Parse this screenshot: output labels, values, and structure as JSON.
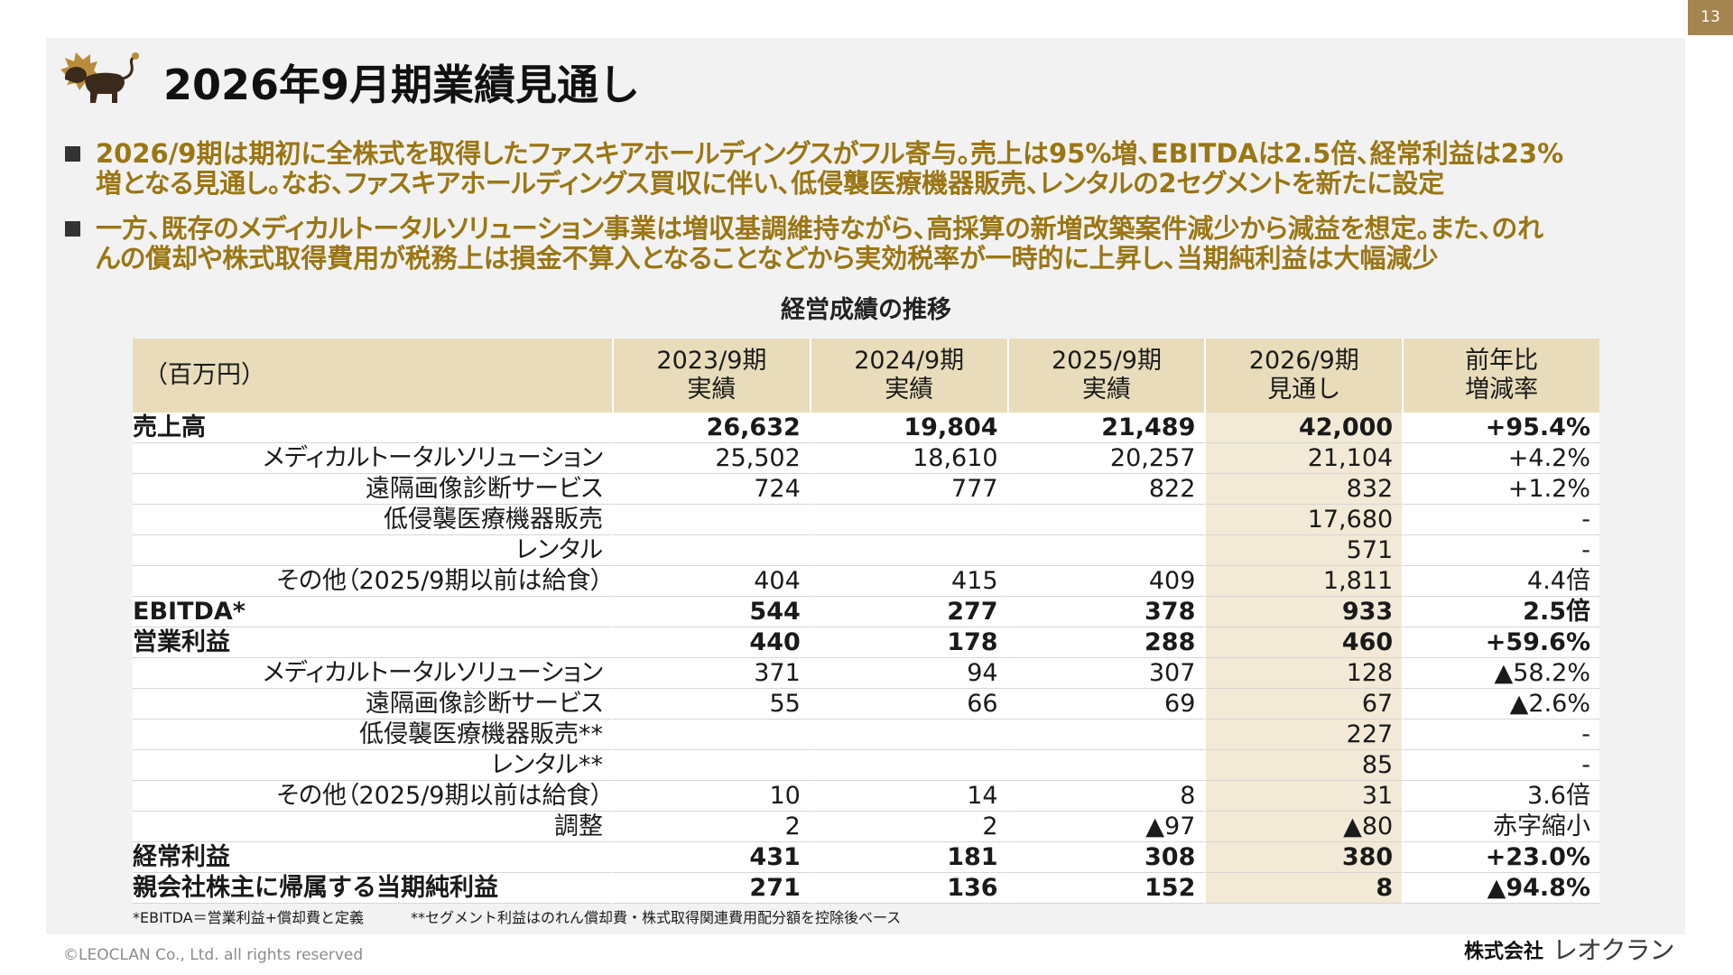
{
  "page_number": "13",
  "title": "2026年9月期業績見通し",
  "icons": {
    "brand_logo": "lion-logo-icon",
    "bullet": "square-bullet-icon"
  },
  "colors": {
    "accent_text": "#9a7614",
    "table_header_bg": "#e8dcba",
    "forecast_column_bg": "#f2ead6",
    "page_number_bg": "#a4854f",
    "panel_bg": "#f2f2f2",
    "lion_mane": "#b88c3a",
    "lion_body": "#3b2a1c"
  },
  "bullets": [
    {
      "lines": [
        "2026/9期は期初に全株式を取得したファスキアホールディングスがフル寄与。売上は95%増、EBITDAは2.5倍、経常利益は23%",
        "増となる見通し。なお、ファスキアホールディングス買収に伴い、低侵襲医療機器販売、レンタルの2セグメントを新たに設定"
      ]
    },
    {
      "lines": [
        "一方、既存のメディカルトータルソリューション事業は増収基調維持ながら、高採算の新増改築案件減少から減益を想定。また、のれ",
        "んの償却や株式取得費用が税務上は損金不算入となることなどから実効税率が一時的に上昇し、当期純利益は大幅減少"
      ]
    }
  ],
  "table": {
    "title": "経営成績の推移",
    "unit_label": "（百万円）",
    "columns": [
      {
        "header_lines": [
          "2023/9期",
          "実績"
        ]
      },
      {
        "header_lines": [
          "2024/9期",
          "実績"
        ]
      },
      {
        "header_lines": [
          "2025/9期",
          "実績"
        ]
      },
      {
        "header_lines": [
          "2026/9期",
          "見通し"
        ]
      },
      {
        "header_lines": [
          "前年比",
          "増減率"
        ]
      }
    ],
    "rows": [
      {
        "label": "売上高",
        "values": [
          "26,632",
          "19,804",
          "21,489",
          "42,000",
          "+95.4%"
        ],
        "sub_rows": [
          {
            "label": "メディカルトータルソリューション",
            "values": [
              "25,502",
              "18,610",
              "20,257",
              "21,104",
              "+4.2%"
            ]
          },
          {
            "label": "遠隔画像診断サービス",
            "values": [
              "724",
              "777",
              "822",
              "832",
              "+1.2%"
            ]
          },
          {
            "label": "低侵襲医療機器販売",
            "values": [
              "",
              "",
              "",
              "17,680",
              "-"
            ]
          },
          {
            "label": "レンタル",
            "values": [
              "",
              "",
              "",
              "571",
              "-"
            ]
          },
          {
            "label": "その他（2025/9期以前は給食）",
            "values": [
              "404",
              "415",
              "409",
              "1,811",
              "4.4倍"
            ]
          }
        ]
      },
      {
        "label": "EBITDA*",
        "values": [
          "544",
          "277",
          "378",
          "933",
          "2.5倍"
        ]
      },
      {
        "label": "営業利益",
        "values": [
          "440",
          "178",
          "288",
          "460",
          "+59.6%"
        ],
        "sub_rows": [
          {
            "label": "メディカルトータルソリューション",
            "values": [
              "371",
              "94",
              "307",
              "128",
              "▲58.2%"
            ]
          },
          {
            "label": "遠隔画像診断サービス",
            "values": [
              "55",
              "66",
              "69",
              "67",
              "▲2.6%"
            ]
          },
          {
            "label": "低侵襲医療機器販売**",
            "values": [
              "",
              "",
              "",
              "227",
              "-"
            ]
          },
          {
            "label": "レンタル**",
            "values": [
              "",
              "",
              "",
              "85",
              "-"
            ]
          },
          {
            "label": "その他（2025/9期以前は給食）",
            "values": [
              "10",
              "14",
              "8",
              "31",
              "3.6倍"
            ]
          },
          {
            "label": "調整",
            "values": [
              "2",
              "2",
              "▲97",
              "▲80",
              "赤字縮小"
            ]
          }
        ]
      },
      {
        "label": "経常利益",
        "values": [
          "431",
          "181",
          "308",
          "380",
          "+23.0%"
        ]
      },
      {
        "label": "親会社株主に帰属する当期純利益",
        "values": [
          "271",
          "136",
          "152",
          "8",
          "▲94.8%"
        ]
      }
    ]
  },
  "footnotes": [
    "*EBITDA＝営業利益+償却費と定義",
    "**セグメント利益はのれん償却費・株式取得関連費用配分額を控除後ベース"
  ],
  "copyright": "©LEOCLAN Co., Ltd. all rights reserved",
  "company": {
    "prefix": "株式会社",
    "name": "レオクラン"
  }
}
